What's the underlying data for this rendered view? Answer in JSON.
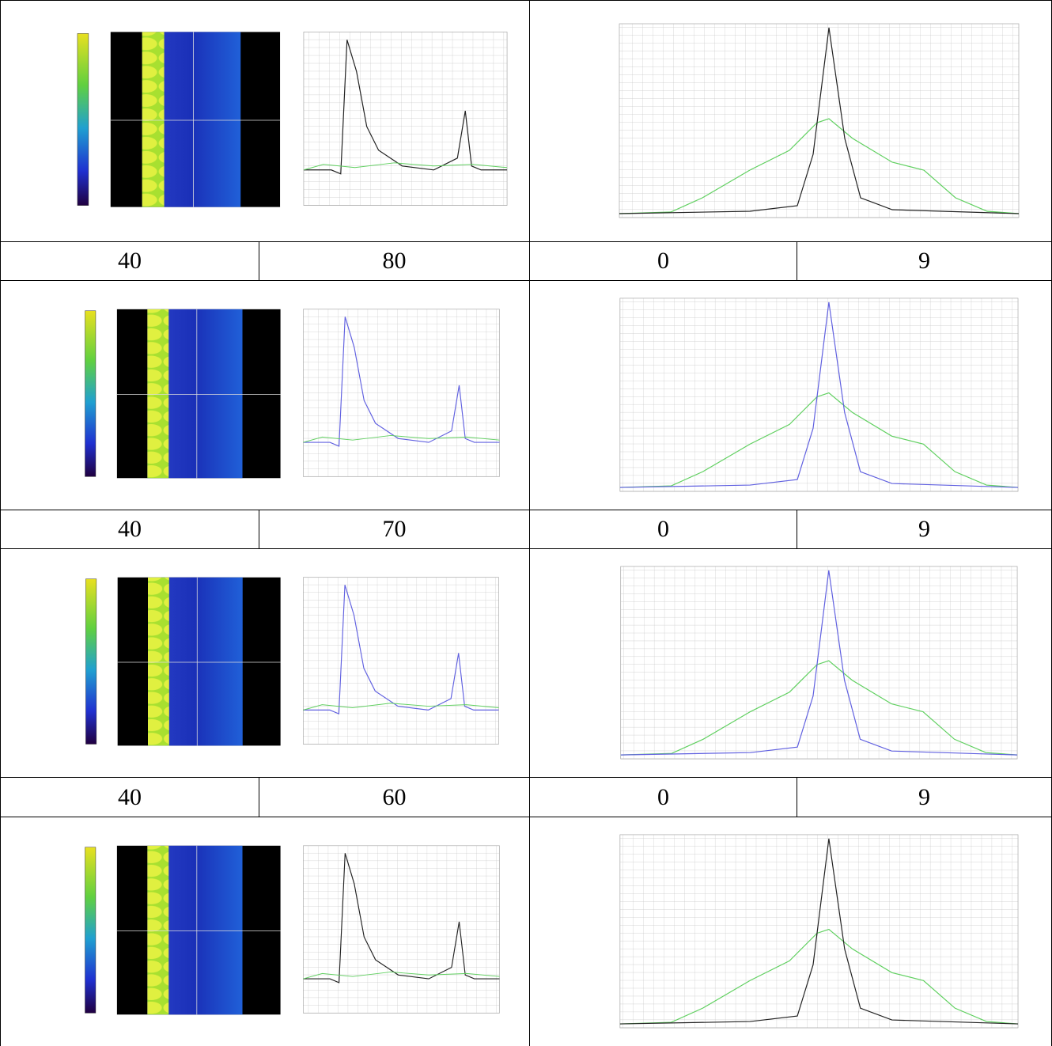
{
  "table": {
    "rows": [
      [
        40,
        80,
        0,
        9
      ],
      [
        40,
        70,
        0,
        9
      ],
      [
        40,
        60,
        0,
        9
      ]
    ]
  }
}
